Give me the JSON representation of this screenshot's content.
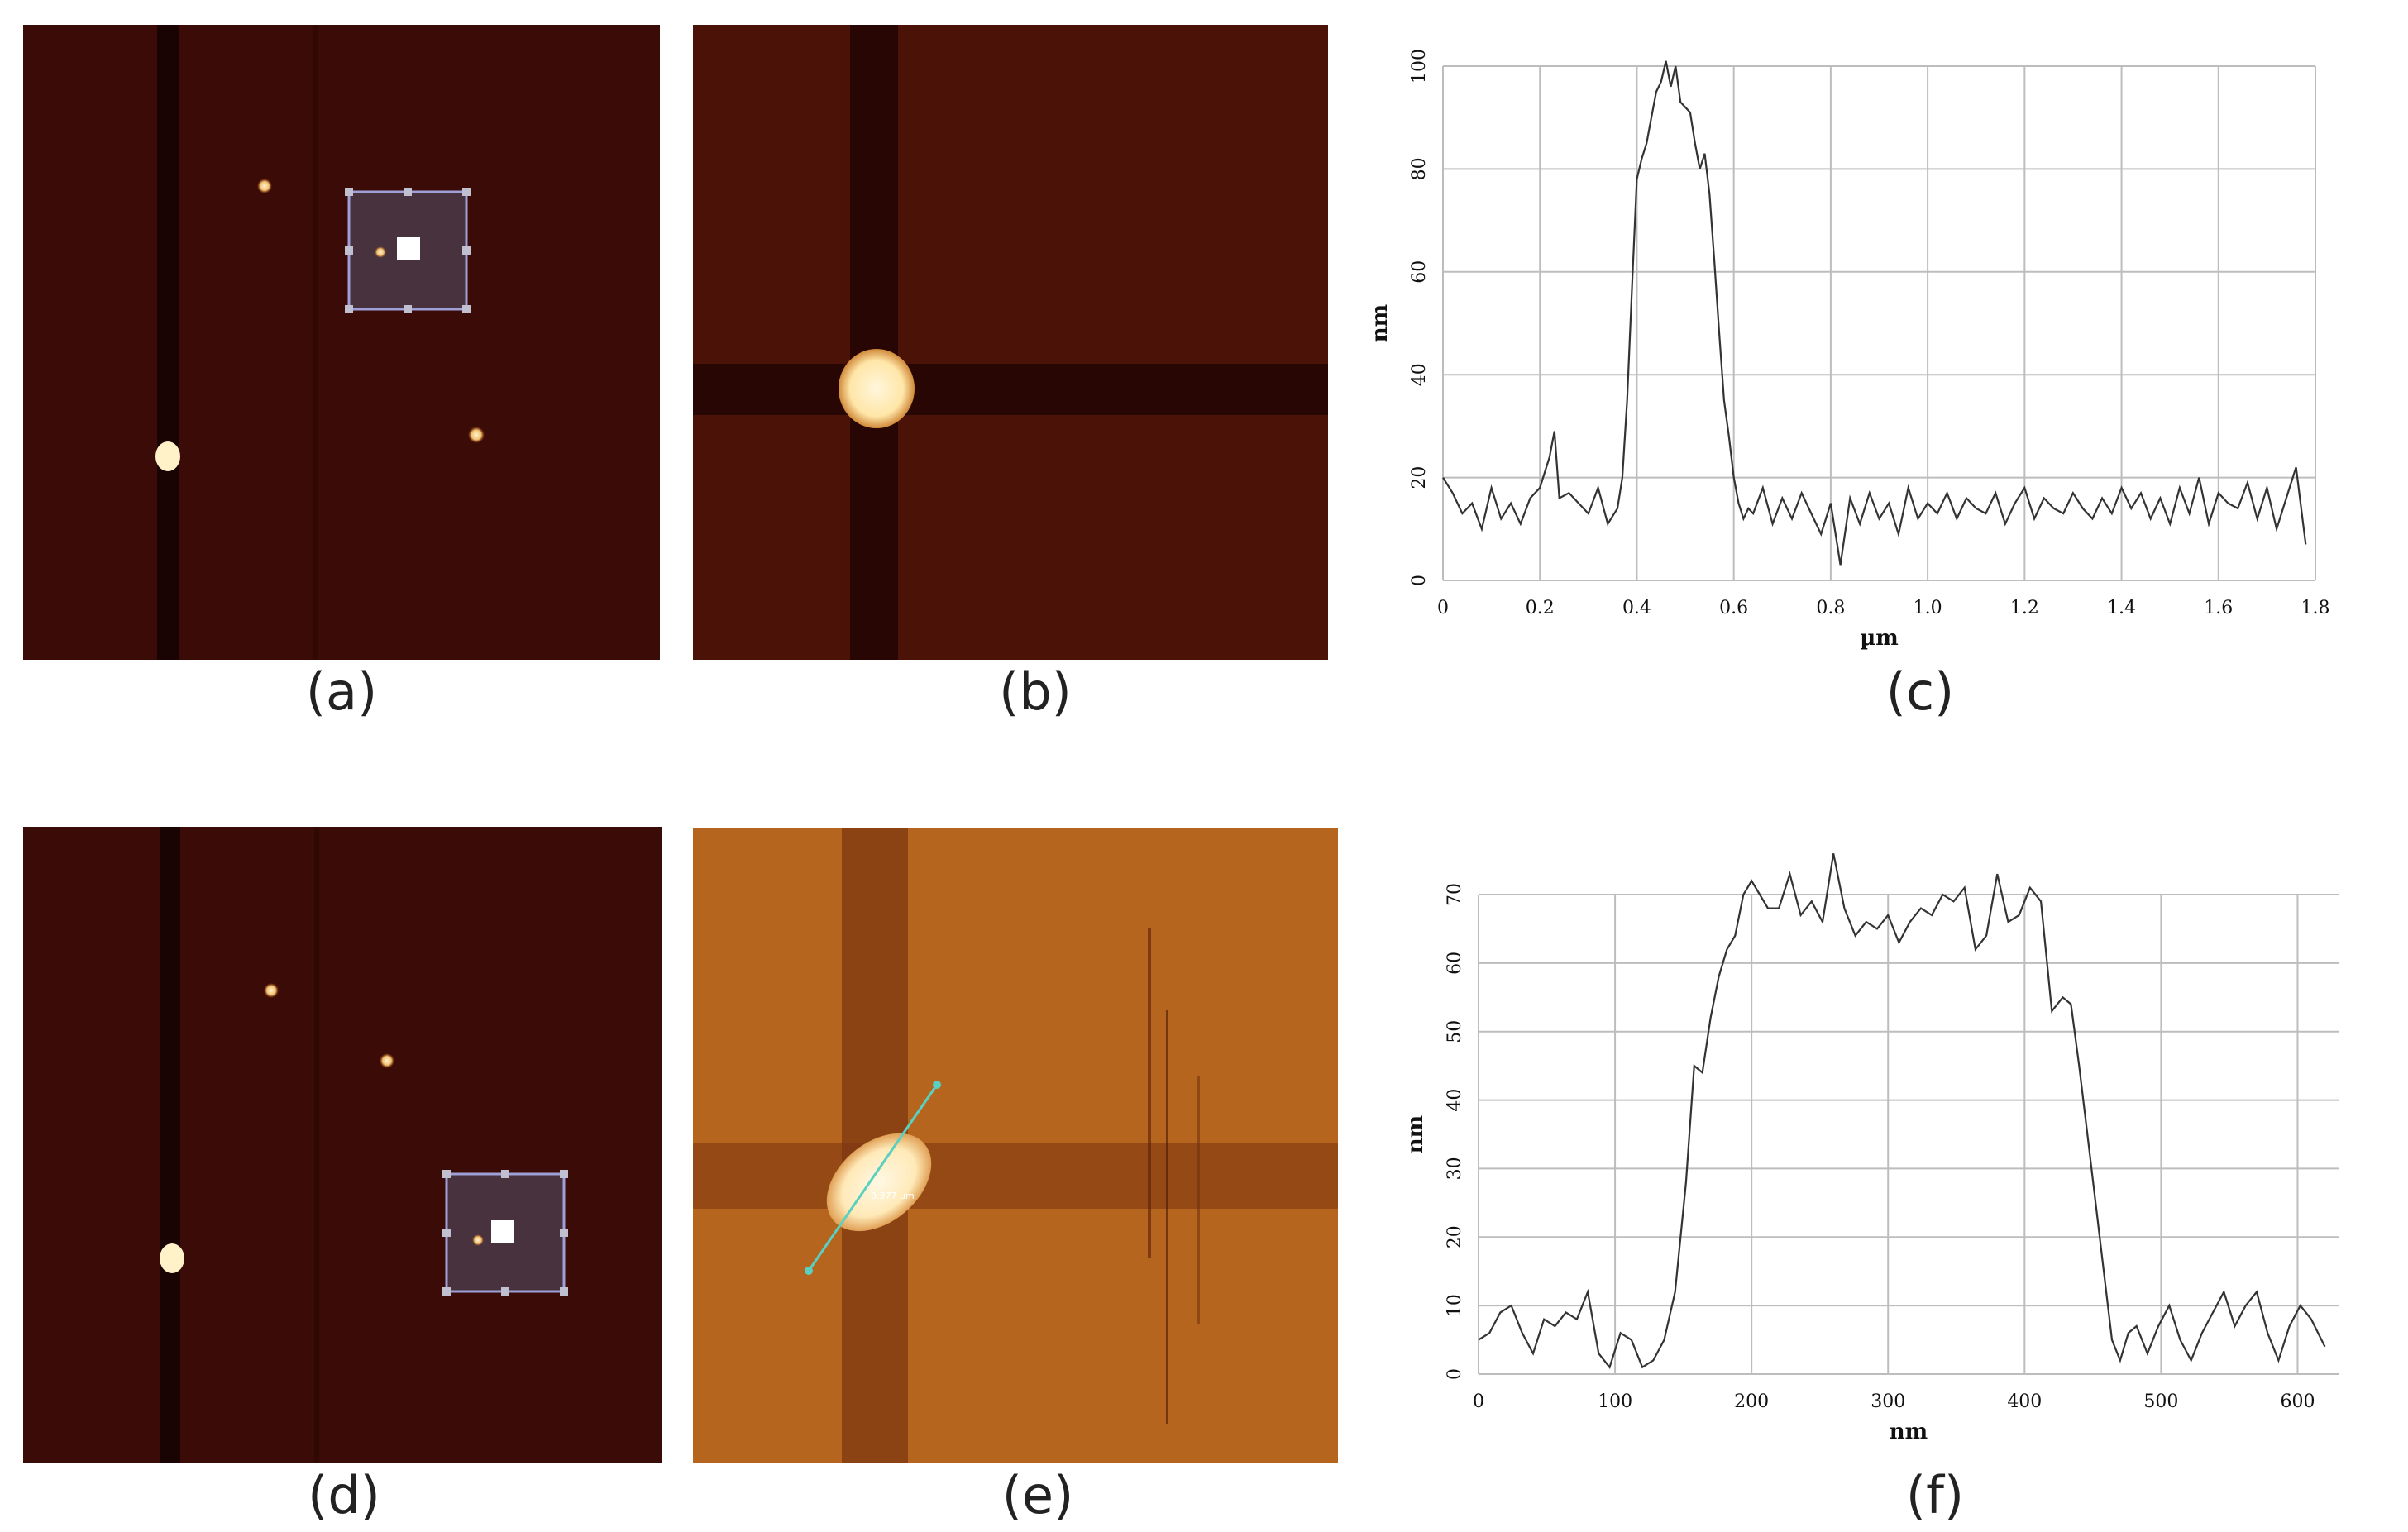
{
  "captions": [
    "(a)",
    "(b)",
    "(c)",
    "(d)",
    "(e)",
    "(f)"
  ],
  "colors": {
    "afm_dark_bg": "#3a0b07",
    "afm_bright_bg": "#b5651e",
    "particle": "#fff1c8",
    "selection_box": "#9fa0d8",
    "profile_line": "#5ad1c0",
    "trace": "#333333",
    "grid": "#bdbdbd"
  },
  "panel_e": {
    "line_label": "0.377 µm"
  },
  "chart_data": [
    {
      "id": "c",
      "type": "line",
      "xlabel": "µm",
      "ylabel": "nm",
      "xlim": [
        0,
        1.8
      ],
      "ylim": [
        0,
        100
      ],
      "xticks": [
        0,
        0.2,
        0.4,
        0.6,
        0.8,
        1.0,
        1.2,
        1.4,
        1.6,
        1.8
      ],
      "xtick_labels": [
        "0",
        "0.2",
        "0.4",
        "0.6",
        "0.8",
        "1.0",
        "1.2",
        "1.4",
        "1.6",
        "1.8"
      ],
      "yticks": [
        0,
        20,
        40,
        60,
        80,
        100
      ],
      "ytick_labels": [
        "0",
        "20",
        "40",
        "60",
        "80",
        "100"
      ],
      "grid": true,
      "x": [
        0,
        0.02,
        0.04,
        0.06,
        0.08,
        0.1,
        0.12,
        0.14,
        0.16,
        0.18,
        0.2,
        0.22,
        0.23,
        0.24,
        0.26,
        0.28,
        0.3,
        0.32,
        0.34,
        0.36,
        0.37,
        0.38,
        0.39,
        0.4,
        0.41,
        0.42,
        0.43,
        0.44,
        0.45,
        0.46,
        0.47,
        0.48,
        0.49,
        0.5,
        0.51,
        0.52,
        0.53,
        0.54,
        0.55,
        0.56,
        0.57,
        0.58,
        0.59,
        0.6,
        0.61,
        0.62,
        0.63,
        0.64,
        0.66,
        0.68,
        0.7,
        0.72,
        0.74,
        0.76,
        0.78,
        0.8,
        0.82,
        0.84,
        0.86,
        0.88,
        0.9,
        0.92,
        0.94,
        0.96,
        0.98,
        1.0,
        1.02,
        1.04,
        1.06,
        1.08,
        1.1,
        1.12,
        1.14,
        1.16,
        1.18,
        1.2,
        1.22,
        1.24,
        1.26,
        1.28,
        1.3,
        1.32,
        1.34,
        1.36,
        1.38,
        1.4,
        1.42,
        1.44,
        1.46,
        1.48,
        1.5,
        1.52,
        1.54,
        1.56,
        1.58,
        1.6,
        1.62,
        1.64,
        1.66,
        1.68,
        1.7,
        1.72,
        1.74,
        1.76,
        1.78
      ],
      "y": [
        20,
        17,
        13,
        15,
        10,
        18,
        12,
        15,
        11,
        16,
        18,
        24,
        29,
        16,
        17,
        15,
        13,
        18,
        11,
        14,
        20,
        35,
        57,
        78,
        82,
        85,
        90,
        95,
        97,
        101,
        96,
        100,
        93,
        92,
        91,
        85,
        80,
        83,
        75,
        62,
        48,
        35,
        28,
        20,
        15,
        12,
        14,
        13,
        18,
        11,
        16,
        12,
        17,
        13,
        9,
        15,
        3,
        16,
        11,
        17,
        12,
        15,
        9,
        18,
        12,
        15,
        13,
        17,
        12,
        16,
        14,
        13,
        17,
        11,
        15,
        18,
        12,
        16,
        14,
        13,
        17,
        14,
        12,
        16,
        13,
        18,
        14,
        17,
        12,
        16,
        11,
        18,
        13,
        20,
        11,
        17,
        15,
        14,
        19,
        12,
        18,
        10,
        16,
        22,
        7
      ]
    },
    {
      "id": "f",
      "type": "line",
      "xlabel": "nm",
      "ylabel": "nm",
      "xlim": [
        0,
        630
      ],
      "ylim": [
        0,
        70
      ],
      "xticks": [
        0,
        100,
        200,
        300,
        400,
        500,
        600
      ],
      "xtick_labels": [
        "0",
        "100",
        "200",
        "300",
        "400",
        "500",
        "600"
      ],
      "yticks": [
        0,
        10,
        20,
        30,
        40,
        50,
        60,
        70
      ],
      "ytick_labels": [
        "0",
        "10",
        "20",
        "30",
        "40",
        "50",
        "60",
        "70"
      ],
      "grid": true,
      "x": [
        0,
        8,
        16,
        24,
        32,
        40,
        48,
        56,
        64,
        72,
        80,
        88,
        96,
        104,
        112,
        120,
        128,
        136,
        144,
        152,
        158,
        164,
        170,
        176,
        182,
        188,
        194,
        200,
        206,
        212,
        220,
        228,
        236,
        244,
        252,
        260,
        268,
        276,
        284,
        292,
        300,
        308,
        316,
        324,
        332,
        340,
        348,
        356,
        364,
        372,
        380,
        388,
        396,
        404,
        412,
        420,
        428,
        434,
        440,
        446,
        452,
        458,
        464,
        470,
        476,
        482,
        490,
        498,
        506,
        514,
        522,
        530,
        538,
        546,
        554,
        562,
        570,
        578,
        586,
        594,
        602,
        610,
        620
      ],
      "y": [
        5,
        6,
        9,
        10,
        6,
        3,
        8,
        7,
        9,
        8,
        12,
        3,
        1,
        6,
        5,
        1,
        2,
        5,
        12,
        28,
        45,
        44,
        52,
        58,
        62,
        64,
        70,
        72,
        70,
        68,
        68,
        73,
        67,
        69,
        66,
        76,
        68,
        64,
        66,
        65,
        67,
        63,
        66,
        68,
        67,
        70,
        69,
        71,
        62,
        64,
        73,
        66,
        67,
        71,
        69,
        53,
        55,
        54,
        45,
        35,
        25,
        15,
        5,
        2,
        6,
        7,
        3,
        7,
        10,
        5,
        2,
        6,
        9,
        12,
        7,
        10,
        12,
        6,
        2,
        7,
        10,
        8,
        4
      ]
    }
  ]
}
